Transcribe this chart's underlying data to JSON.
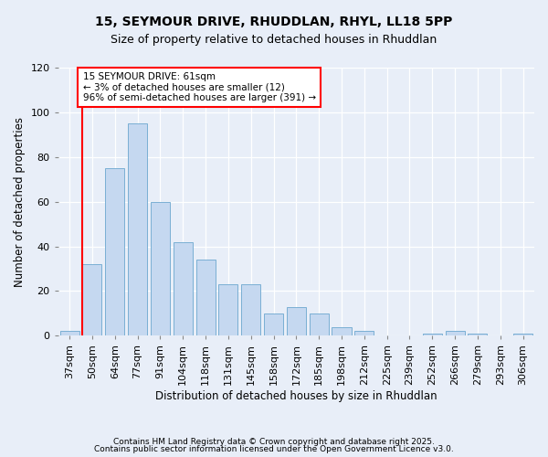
{
  "title1": "15, SEYMOUR DRIVE, RHUDDLAN, RHYL, LL18 5PP",
  "title2": "Size of property relative to detached houses in Rhuddlan",
  "xlabel": "Distribution of detached houses by size in Rhuddlan",
  "ylabel": "Number of detached properties",
  "categories": [
    "37sqm",
    "50sqm",
    "64sqm",
    "77sqm",
    "91sqm",
    "104sqm",
    "118sqm",
    "131sqm",
    "145sqm",
    "158sqm",
    "172sqm",
    "185sqm",
    "198sqm",
    "212sqm",
    "225sqm",
    "239sqm",
    "252sqm",
    "266sqm",
    "279sqm",
    "293sqm",
    "306sqm"
  ],
  "values": [
    2,
    32,
    75,
    95,
    60,
    42,
    34,
    23,
    23,
    10,
    13,
    10,
    4,
    2,
    0,
    0,
    1,
    2,
    1,
    0,
    1
  ],
  "bar_color": "#c5d8f0",
  "bar_edge_color": "#7aafd4",
  "highlight_color": "#ff0000",
  "annotation_text": "15 SEYMOUR DRIVE: 61sqm\n← 3% of detached houses are smaller (12)\n96% of semi-detached houses are larger (391) →",
  "annotation_box_color": "#ffffff",
  "annotation_box_edge": "#ff0000",
  "ylim": [
    0,
    120
  ],
  "yticks": [
    0,
    20,
    40,
    60,
    80,
    100,
    120
  ],
  "footer1": "Contains HM Land Registry data © Crown copyright and database right 2025.",
  "footer2": "Contains public sector information licensed under the Open Government Licence v3.0.",
  "background_color": "#e8eef8",
  "title_fontsize": 10,
  "subtitle_fontsize": 9,
  "axis_label_fontsize": 8.5,
  "tick_fontsize": 8,
  "footer_fontsize": 6.5
}
